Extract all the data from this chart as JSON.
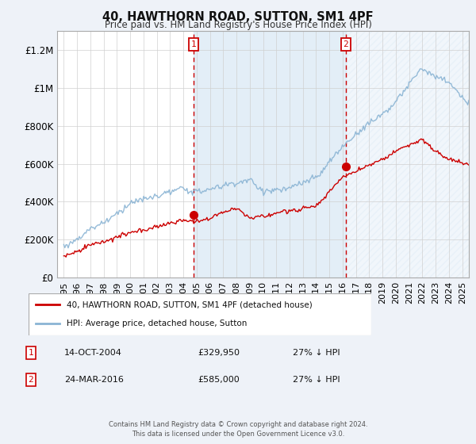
{
  "title": "40, HAWTHORN ROAD, SUTTON, SM1 4PF",
  "subtitle": "Price paid vs. HM Land Registry's House Price Index (HPI)",
  "hpi_label": "HPI: Average price, detached house, Sutton",
  "property_label": "40, HAWTHORN ROAD, SUTTON, SM1 4PF (detached house)",
  "sale1": {
    "date": "14-OCT-2004",
    "price": 329950,
    "note": "27% ↓ HPI"
  },
  "sale2": {
    "date": "24-MAR-2016",
    "price": 585000,
    "note": "27% ↓ HPI"
  },
  "sale1_x": 2004.79,
  "sale2_x": 2016.23,
  "background_color": "#eef2f8",
  "plot_bg": "#ffffff",
  "hpi_color": "#8ab4d4",
  "property_color": "#cc0000",
  "shade_color": "#d8e8f5",
  "footer": "Contains HM Land Registry data © Crown copyright and database right 2024.\nThis data is licensed under the Open Government Licence v3.0.",
  "ylim": [
    0,
    1300000
  ],
  "xlim": [
    1994.5,
    2025.5
  ],
  "yticks": [
    0,
    200000,
    400000,
    600000,
    800000,
    1000000,
    1200000
  ],
  "ytick_labels": [
    "£0",
    "£200K",
    "£400K",
    "£600K",
    "£800K",
    "£1M",
    "£1.2M"
  ],
  "xticks": [
    1995,
    1996,
    1997,
    1998,
    1999,
    2000,
    2001,
    2002,
    2003,
    2004,
    2005,
    2006,
    2007,
    2008,
    2009,
    2010,
    2011,
    2012,
    2013,
    2014,
    2015,
    2016,
    2017,
    2018,
    2019,
    2020,
    2021,
    2022,
    2023,
    2024,
    2025
  ]
}
